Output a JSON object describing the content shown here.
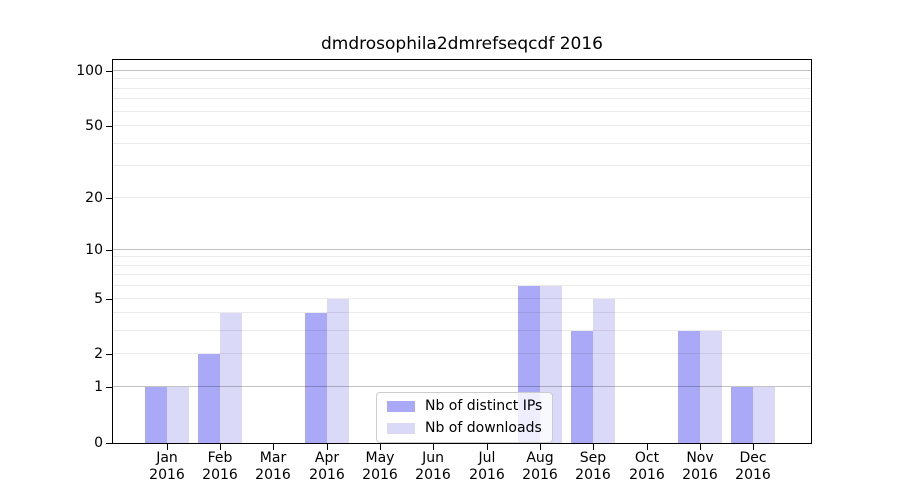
{
  "figure": {
    "title": "dmdrosophila2dmrefseqcdf 2016"
  },
  "chart_data": {
    "type": "bar",
    "title": "dmdrosophila2dmrefseqcdf 2016",
    "categories": [
      "Jan 2016",
      "Feb 2016",
      "Mar 2016",
      "Apr 2016",
      "May 2016",
      "Jun 2016",
      "Jul 2016",
      "Aug 2016",
      "Sep 2016",
      "Oct 2016",
      "Nov 2016",
      "Dec 2016"
    ],
    "series": [
      {
        "name": "Nb of distinct IPs",
        "color": "#a9a9f7",
        "values": [
          1,
          2,
          0,
          4,
          0,
          0,
          0,
          6,
          3,
          0,
          3,
          1
        ]
      },
      {
        "name": "Nb of downloads",
        "color": "#dadaf8",
        "values": [
          1,
          4,
          0,
          5,
          0,
          0,
          0,
          6,
          5,
          0,
          3,
          1
        ]
      }
    ],
    "xlabel": "",
    "ylabel": "",
    "yscale": "log1p",
    "ylim": [
      0,
      115
    ],
    "y_ticks": [
      0,
      1,
      2,
      5,
      10,
      20,
      50,
      100
    ],
    "y_major_gridlines": [
      1,
      10,
      100
    ],
    "y_minor_gridlines": [
      2,
      3,
      4,
      5,
      6,
      7,
      8,
      9,
      20,
      30,
      40,
      50,
      60,
      70,
      80,
      90
    ],
    "grid": true,
    "legend_position": "lower center"
  }
}
